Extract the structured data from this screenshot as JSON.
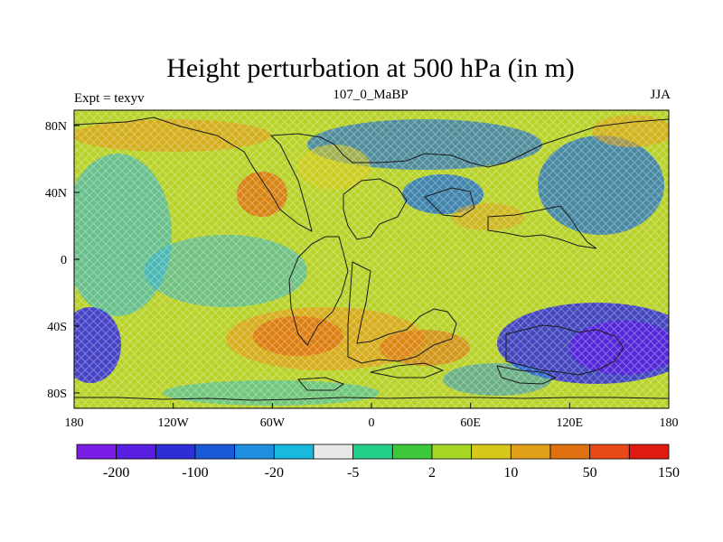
{
  "title": "Height perturbation at 500 hPa (in m)",
  "subtitle_left": "Expt = texyv",
  "subtitle_center": "107_0_MaBP",
  "subtitle_right": "JJA",
  "colors": {
    "bins": [
      "#7a1be6",
      "#5a1ee0",
      "#2f2fd8",
      "#1a5ad9",
      "#1f8ee0",
      "#18b9dc",
      "#e8e8e8",
      "#22d08a",
      "#3cc83a",
      "#a8d624",
      "#d8c81c",
      "#e0a018",
      "#e07010",
      "#e84818",
      "#e01c10"
    ]
  },
  "chart_data": {
    "type": "heatmap",
    "xlabel": "",
    "ylabel": "",
    "x_ticks": [
      "180",
      "120W",
      "60W",
      "0",
      "60E",
      "120E",
      "180"
    ],
    "y_ticks": [
      "80N",
      "40N",
      "0",
      "40S",
      "80S"
    ],
    "colorbar_labels": [
      "-200",
      "-100",
      "-20",
      "-5",
      "2",
      "10",
      "50",
      "150"
    ]
  }
}
